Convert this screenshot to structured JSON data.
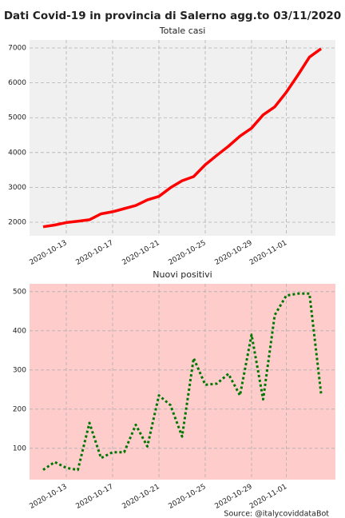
{
  "title": "Dati Covid-19 in provincia di Salerno agg.to 03/11/2020",
  "source": "Source: @italycoviddataBot",
  "chart_data": [
    {
      "type": "line",
      "title": "Totale casi",
      "categories": [
        null,
        null,
        "2020-10-13",
        null,
        null,
        null,
        "2020-10-17",
        null,
        null,
        null,
        "2020-10-21",
        null,
        null,
        null,
        "2020-10-25",
        null,
        null,
        null,
        "2020-10-29",
        null,
        null,
        "2020-11-01",
        null,
        null,
        null
      ],
      "series": [
        {
          "name": "Totale casi",
          "color": "#ff0000",
          "linestyle": "solid",
          "values": [
            1870,
            1920,
            1990,
            2030,
            2070,
            2240,
            2300,
            2390,
            2480,
            2640,
            2740,
            2990,
            3190,
            3310,
            3650,
            3920,
            4180,
            4470,
            4700,
            5080,
            5310,
            5730,
            6220,
            6740,
            6980
          ]
        }
      ],
      "ylim": [
        1610,
        7230
      ],
      "yticks": [
        2000,
        3000,
        4000,
        5000,
        6000,
        7000
      ],
      "grid": true,
      "background": "#f0f0f0"
    },
    {
      "type": "line",
      "title": "Nuovi positivi",
      "categories": [
        null,
        null,
        "2020-10-13",
        null,
        null,
        null,
        "2020-10-17",
        null,
        null,
        null,
        "2020-10-21",
        null,
        null,
        null,
        "2020-10-25",
        null,
        null,
        null,
        "2020-10-29",
        null,
        null,
        "2020-11-01",
        null,
        null,
        null
      ],
      "series": [
        {
          "name": "Nuovi positivi",
          "color": "#007700",
          "linestyle": "dotted",
          "values": [
            45,
            65,
            50,
            45,
            165,
            75,
            90,
            90,
            160,
            105,
            235,
            210,
            130,
            330,
            262,
            265,
            290,
            235,
            390,
            225,
            440,
            490,
            495,
            495,
            240
          ]
        }
      ],
      "ylim": [
        20,
        520
      ],
      "yticks": [
        100,
        200,
        300,
        400,
        500
      ],
      "grid": true,
      "background": "#ffcccc"
    }
  ]
}
